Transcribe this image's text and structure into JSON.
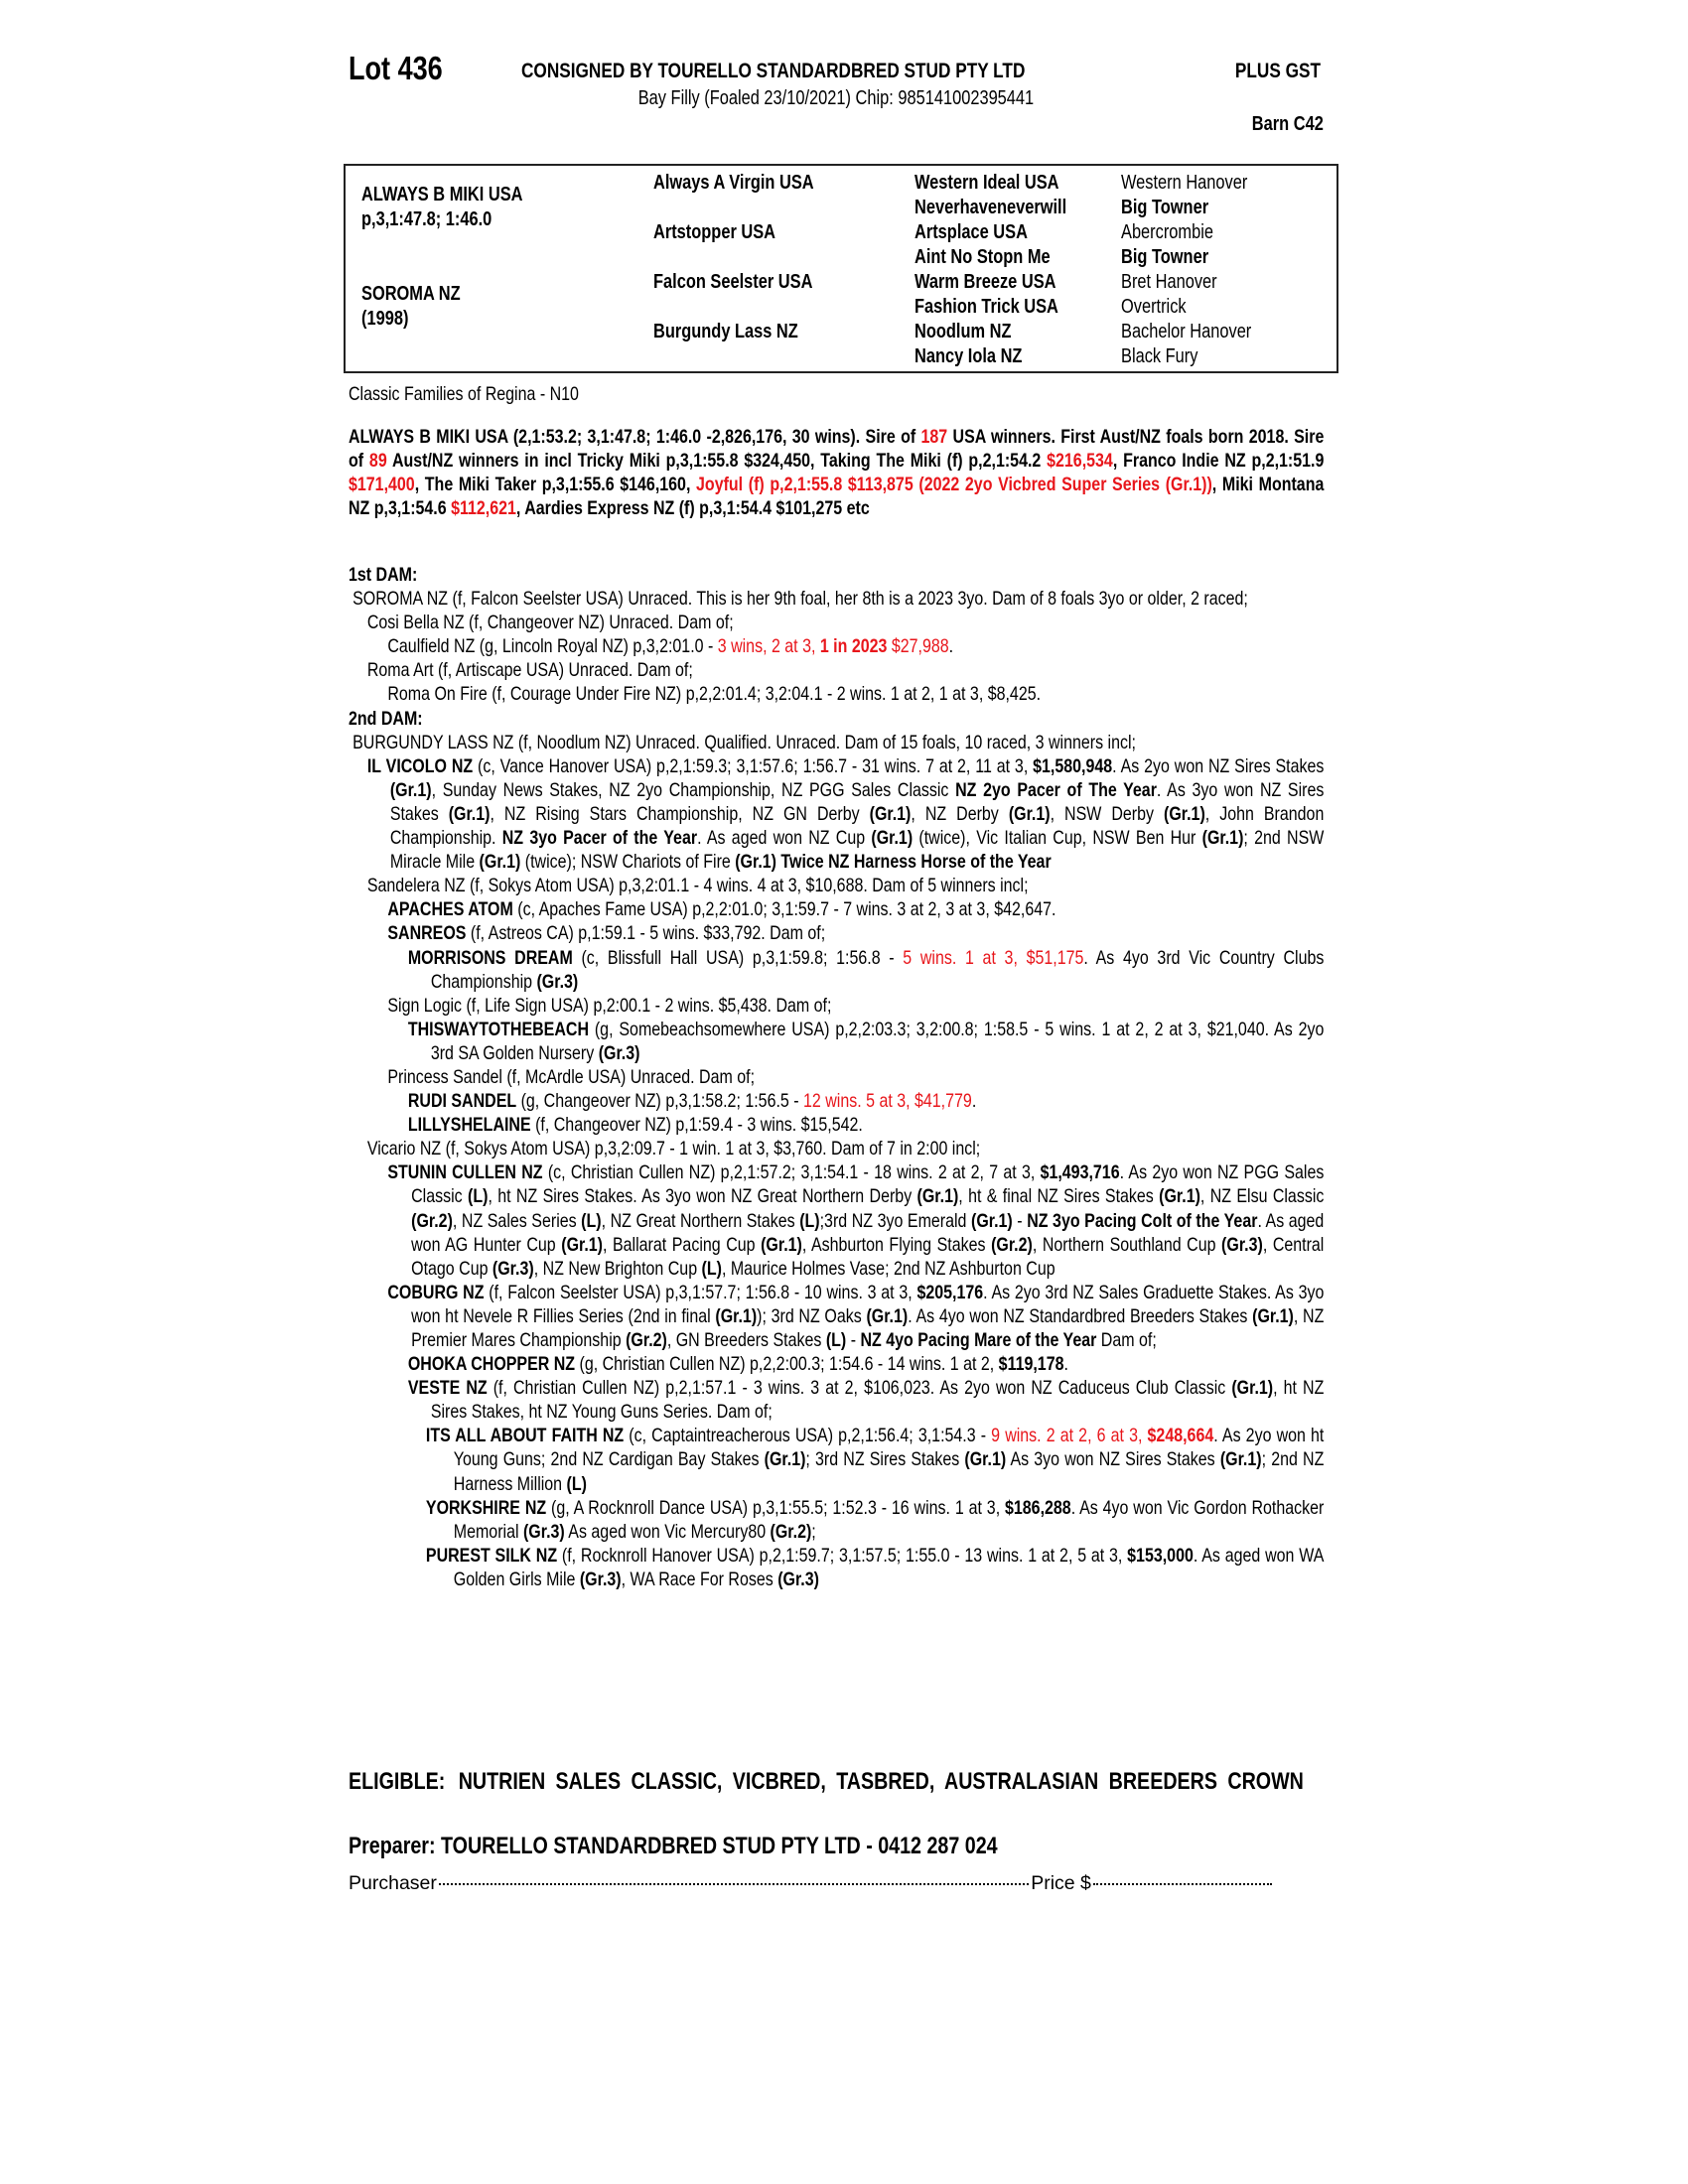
{
  "header": {
    "lot": "Lot 436",
    "consigned_by": "CONSIGNED BY TOURELLO STANDARDBRED STUD PTY LTD",
    "tax_note": "PLUS GST",
    "description": "Bay Filly (Foaled 23/10/2021) Chip: 985141002395441",
    "barn": "Barn C42"
  },
  "pedigree": {
    "sire": {
      "name": "ALWAYS B MIKI USA",
      "record": "p,3,1:47.8; 1:46.0"
    },
    "dam": {
      "name": "SOROMA NZ",
      "year": "(1998)"
    },
    "col2": [
      "Always A Virgin USA",
      "Artstopper USA",
      "Falcon Seelster USA",
      "Burgundy Lass NZ"
    ],
    "col3": [
      "Western Ideal USA",
      "Neverhaveneverwill",
      "Artsplace USA",
      "Aint No Stopn Me",
      "Warm Breeze USA",
      "Fashion Trick USA",
      "Noodlum NZ",
      "Nancy Iola NZ"
    ],
    "col4": [
      {
        "t": "Western Hanover",
        "bold": false
      },
      {
        "t": "Big Towner",
        "bold": true
      },
      {
        "t": "Abercrombie",
        "bold": false
      },
      {
        "t": "Big Towner",
        "bold": true
      },
      {
        "t": "Bret Hanover",
        "bold": false
      },
      {
        "t": "Overtrick",
        "bold": false
      },
      {
        "t": "Bachelor Hanover",
        "bold": false
      },
      {
        "t": "Black Fury",
        "bold": false
      }
    ]
  },
  "family": "Classic Families of Regina - N10",
  "sire_summary": {
    "segs": [
      {
        "t": "ALWAYS B MIKI USA (2,1:53.2; 3,1:47.8; 1:46.0 -2,826,176, 30 wins). Sire of ",
        "s": "b"
      },
      {
        "t": "187",
        "s": "br"
      },
      {
        "t": " USA winners. First Aust/NZ foals born 2018. Sire of ",
        "s": "b"
      },
      {
        "t": "89",
        "s": "br"
      },
      {
        "t": " Aust/NZ winners in incl Tricky Miki p,3,1:55.8 $324,450, Taking The Miki (f) p,2,1:54.2 ",
        "s": "b"
      },
      {
        "t": "$216,534",
        "s": "br"
      },
      {
        "t": ", Franco Indie NZ p,2,1:51.9 ",
        "s": "b"
      },
      {
        "t": "$171,400",
        "s": "br"
      },
      {
        "t": ", The Miki Taker p,3,1:55.6 $146,160, ",
        "s": "b"
      },
      {
        "t": "Joyful (f) p,2,1:55.8 $113,875 (2022 2yo Vicbred Super Series (Gr.1))",
        "s": "br"
      },
      {
        "t": ", Miki Montana NZ p,3,1:54.6 ",
        "s": "b"
      },
      {
        "t": "$112,621",
        "s": "br"
      },
      {
        "t": ", Aardies Express NZ (f) p,3,1:54.4 $101,275 etc",
        "s": "b"
      }
    ]
  },
  "notes": [
    {
      "lvl": "h",
      "segs": [
        {
          "t": "1st DAM:",
          "s": "b"
        }
      ]
    },
    {
      "lvl": "d",
      "segs": [
        {
          "t": "SOROMA NZ (f, Falcon Seelster USA) Unraced. This is her 9th foal, her 8th is a 2023 3yo. Dam of 8 foals 3yo or older, 2 raced;",
          "s": ""
        }
      ]
    },
    {
      "lvl": "1",
      "segs": [
        {
          "t": "Cosi Bella NZ (f, Changeover NZ) Unraced. Dam of;",
          "s": ""
        }
      ]
    },
    {
      "lvl": "2",
      "segs": [
        {
          "t": "Caulfield NZ (g, Lincoln Royal NZ) p,3,2:01.0 - ",
          "s": ""
        },
        {
          "t": "3 wins, 2 at 3, ",
          "s": "r"
        },
        {
          "t": "1 in 2023",
          "s": "br"
        },
        {
          "t": " $27,988",
          "s": "r"
        },
        {
          "t": ".",
          "s": ""
        }
      ]
    },
    {
      "lvl": "1",
      "segs": [
        {
          "t": "Roma Art (f, Artiscape USA) Unraced. Dam of;",
          "s": ""
        }
      ]
    },
    {
      "lvl": "2",
      "segs": [
        {
          "t": "Roma On Fire (f, Courage Under Fire NZ) p,2,2:01.4; 3,2:04.1 - 2 wins. 1 at 2, 1 at 3, $8,425.",
          "s": ""
        }
      ]
    },
    {
      "lvl": "h",
      "segs": [
        {
          "t": "2nd DAM:",
          "s": "b"
        }
      ]
    },
    {
      "lvl": "d",
      "segs": [
        {
          "t": "BURGUNDY LASS NZ (f, Noodlum NZ) Unraced. Qualified. Unraced. Dam of 15 foals, 10 raced, 3 winners incl;",
          "s": ""
        }
      ]
    },
    {
      "lvl": "1w",
      "segs": [
        {
          "t": "IL VICOLO NZ",
          "s": "b"
        },
        {
          "t": " (c, Vance Hanover USA) p,2,1:59.3; 3,1:57.6; 1:56.7 - 31 wins. 7 at 2, 11 at 3, ",
          "s": ""
        },
        {
          "t": "$1,580,948",
          "s": "b"
        },
        {
          "t": ". As 2yo won NZ Sires Stakes ",
          "s": ""
        },
        {
          "t": "(Gr.1)",
          "s": "b"
        },
        {
          "t": ", Sunday News Stakes, NZ 2yo Championship, NZ PGG Sales Classic ",
          "s": ""
        },
        {
          "t": "NZ 2yo Pacer of The Year",
          "s": "b"
        },
        {
          "t": ". As 3yo won NZ Sires Stakes ",
          "s": ""
        },
        {
          "t": "(Gr.1)",
          "s": "b"
        },
        {
          "t": ", NZ Rising Stars Championship, NZ GN Derby ",
          "s": ""
        },
        {
          "t": "(Gr.1)",
          "s": "b"
        },
        {
          "t": ", NZ Derby ",
          "s": ""
        },
        {
          "t": "(Gr.1)",
          "s": "b"
        },
        {
          "t": ", NSW Derby ",
          "s": ""
        },
        {
          "t": "(Gr.1)",
          "s": "b"
        },
        {
          "t": ", John Brandon Championship. ",
          "s": ""
        },
        {
          "t": "NZ 3yo Pacer of the Year",
          "s": "b"
        },
        {
          "t": ". As aged won NZ Cup ",
          "s": ""
        },
        {
          "t": "(Gr.1)",
          "s": "b"
        },
        {
          "t": " (twice), Vic Italian Cup, NSW Ben Hur ",
          "s": ""
        },
        {
          "t": "(Gr.1)",
          "s": "b"
        },
        {
          "t": "; 2nd NSW Miracle Mile ",
          "s": ""
        },
        {
          "t": "(Gr.1)",
          "s": "b"
        },
        {
          "t": " (twice); NSW Chariots of Fire ",
          "s": ""
        },
        {
          "t": "(Gr.1) Twice NZ Harness Horse of the Year",
          "s": "b"
        }
      ]
    },
    {
      "lvl": "1",
      "segs": [
        {
          "t": "Sandelera NZ (f, Sokys Atom USA) p,3,2:01.1 - 4 wins. 4 at 3, $10,688. Dam of 5 winners incl;",
          "s": ""
        }
      ]
    },
    {
      "lvl": "2",
      "segs": [
        {
          "t": "APACHES ATOM",
          "s": "b"
        },
        {
          "t": " (c, Apaches Fame USA) p,2,2:01.0; 3,1:59.7 - 7 wins. 3 at 2, 3 at 3, $42,647.",
          "s": ""
        }
      ]
    },
    {
      "lvl": "2",
      "segs": [
        {
          "t": "SANREOS",
          "s": "b"
        },
        {
          "t": " (f, Astreos CA) p,1:59.1 - 5 wins. $33,792. Dam of;",
          "s": ""
        }
      ]
    },
    {
      "lvl": "3",
      "segs": [
        {
          "t": "MORRISONS DREAM",
          "s": "b"
        },
        {
          "t": " (c, Blissfull Hall USA) p,3,1:59.8; 1:56.8 - ",
          "s": ""
        },
        {
          "t": "5 wins. 1 at 3, $51,175",
          "s": "r"
        },
        {
          "t": ". As 4yo 3rd Vic Country Clubs Championship ",
          "s": ""
        },
        {
          "t": "(Gr.3)",
          "s": "b"
        }
      ]
    },
    {
      "lvl": "2",
      "segs": [
        {
          "t": "Sign Logic (f, Life Sign USA) p,2:00.1 - 2 wins. $5,438. Dam of;",
          "s": ""
        }
      ]
    },
    {
      "lvl": "3",
      "segs": [
        {
          "t": "THISWAYTOTHEBEACH",
          "s": "b"
        },
        {
          "t": " (g, Somebeachsomewhere USA) p,2,2:03.3; 3,2:00.8; 1:58.5 - 5 wins. 1 at 2, 2 at 3, $21,040. As 2yo 3rd SA Golden Nursery ",
          "s": ""
        },
        {
          "t": "(Gr.3)",
          "s": "b"
        }
      ]
    },
    {
      "lvl": "2",
      "segs": [
        {
          "t": "Princess Sandel (f, McArdle USA) Unraced. Dam of;",
          "s": ""
        }
      ]
    },
    {
      "lvl": "3",
      "segs": [
        {
          "t": "RUDI SANDEL",
          "s": "b"
        },
        {
          "t": " (g, Changeover NZ) p,3,1:58.2; 1:56.5 - ",
          "s": ""
        },
        {
          "t": "12 wins. 5 at 3, $41,779",
          "s": "r"
        },
        {
          "t": ".",
          "s": ""
        }
      ]
    },
    {
      "lvl": "3",
      "segs": [
        {
          "t": "LILLYSHELAINE",
          "s": "b"
        },
        {
          "t": " (f, Changeover NZ) p,1:59.4 - 3 wins. $15,542.",
          "s": ""
        }
      ]
    },
    {
      "lvl": "1",
      "segs": [
        {
          "t": "Vicario NZ (f, Sokys Atom USA) p,3,2:09.7 - 1 win. 1 at 3, $3,760. Dam of 7 in 2:00 incl;",
          "s": ""
        }
      ]
    },
    {
      "lvl": "2",
      "segs": [
        {
          "t": "STUNIN CULLEN NZ",
          "s": "b"
        },
        {
          "t": " (c, Christian Cullen NZ) p,2,1:57.2; 3,1:54.1 - 18 wins. 2 at 2, 7 at 3, ",
          "s": ""
        },
        {
          "t": "$1,493,716",
          "s": "b"
        },
        {
          "t": ". As 2yo won NZ PGG Sales Classic ",
          "s": ""
        },
        {
          "t": "(L)",
          "s": "b"
        },
        {
          "t": ", ht NZ Sires Stakes. As 3yo won NZ Great Northern Derby ",
          "s": ""
        },
        {
          "t": "(Gr.1)",
          "s": "b"
        },
        {
          "t": ", ht & final NZ Sires Stakes ",
          "s": ""
        },
        {
          "t": "(Gr.1)",
          "s": "b"
        },
        {
          "t": ", NZ Elsu Classic ",
          "s": ""
        },
        {
          "t": "(Gr.2)",
          "s": "b"
        },
        {
          "t": ", NZ Sales Series ",
          "s": ""
        },
        {
          "t": "(L)",
          "s": "b"
        },
        {
          "t": ", NZ Great Northern Stakes ",
          "s": ""
        },
        {
          "t": "(L)",
          "s": "b"
        },
        {
          "t": ";3rd NZ 3yo Emerald ",
          "s": ""
        },
        {
          "t": "(Gr.1)",
          "s": "b"
        },
        {
          "t": " - ",
          "s": ""
        },
        {
          "t": "NZ 3yo Pacing Colt of the Year",
          "s": "b"
        },
        {
          "t": ". As aged won AG Hunter Cup ",
          "s": ""
        },
        {
          "t": "(Gr.1)",
          "s": "b"
        },
        {
          "t": ", Ballarat Pacing Cup ",
          "s": ""
        },
        {
          "t": "(Gr.1)",
          "s": "b"
        },
        {
          "t": ", Ashburton Flying Stakes ",
          "s": ""
        },
        {
          "t": "(Gr.2)",
          "s": "b"
        },
        {
          "t": ", Northern Southland Cup ",
          "s": ""
        },
        {
          "t": "(Gr.3)",
          "s": "b"
        },
        {
          "t": ", Central Otago Cup ",
          "s": ""
        },
        {
          "t": "(Gr.3)",
          "s": "b"
        },
        {
          "t": ", NZ New Brighton Cup ",
          "s": ""
        },
        {
          "t": "(L)",
          "s": "b"
        },
        {
          "t": ", Maurice Holmes Vase; 2nd NZ Ashburton Cup",
          "s": ""
        }
      ]
    },
    {
      "lvl": "2",
      "segs": [
        {
          "t": "COBURG NZ",
          "s": "b"
        },
        {
          "t": " (f, Falcon Seelster USA) p,3,1:57.7; 1:56.8 - 10 wins. 3 at 3, ",
          "s": ""
        },
        {
          "t": "$205,176",
          "s": "b"
        },
        {
          "t": ". As 2yo 3rd NZ Sales Graduette Stakes. As 3yo won ht Nevele R Fillies Series (2nd in final ",
          "s": ""
        },
        {
          "t": "(Gr.1)",
          "s": "b"
        },
        {
          "t": "); 3rd NZ Oaks ",
          "s": ""
        },
        {
          "t": "(Gr.1)",
          "s": "b"
        },
        {
          "t": ". As 4yo won NZ Standardbred Breeders Stakes ",
          "s": ""
        },
        {
          "t": "(Gr.1)",
          "s": "b"
        },
        {
          "t": ", NZ Premier Mares Championship ",
          "s": ""
        },
        {
          "t": "(Gr.2)",
          "s": "b"
        },
        {
          "t": ", GN Breeders Stakes ",
          "s": ""
        },
        {
          "t": "(L)",
          "s": "b"
        },
        {
          "t": " - ",
          "s": ""
        },
        {
          "t": "NZ 4yo Pacing Mare of the Year",
          "s": "b"
        },
        {
          "t": " Dam of;",
          "s": ""
        }
      ]
    },
    {
      "lvl": "3",
      "segs": [
        {
          "t": "OHOKA CHOPPER NZ",
          "s": "b"
        },
        {
          "t": " (g, Christian Cullen NZ) p,2,2:00.3; 1:54.6 - 14 wins. 1 at 2, ",
          "s": ""
        },
        {
          "t": "$119,178",
          "s": "b"
        },
        {
          "t": ".",
          "s": ""
        }
      ]
    },
    {
      "lvl": "3",
      "segs": [
        {
          "t": "VESTE NZ",
          "s": "b"
        },
        {
          "t": " (f, Christian Cullen NZ) p,2,1:57.1 - 3 wins. 3 at 2, $106,023. As 2yo won NZ Caduceus Club Classic ",
          "s": ""
        },
        {
          "t": "(Gr.1)",
          "s": "b"
        },
        {
          "t": ", ht NZ Sires Stakes, ht NZ Young Guns Series. Dam of;",
          "s": ""
        }
      ]
    },
    {
      "lvl": "4",
      "segs": [
        {
          "t": "ITS ALL ABOUT FAITH NZ",
          "s": "b"
        },
        {
          "t": " (c, Captaintreacherous USA) p,2,1:56.4; 3,1:54.3 - ",
          "s": ""
        },
        {
          "t": "9 wins. 2 at 2, 6 at 3, ",
          "s": "r"
        },
        {
          "t": "$248,664",
          "s": "br"
        },
        {
          "t": ". As 2yo won ht Young Guns; 2nd NZ Cardigan Bay Stakes ",
          "s": ""
        },
        {
          "t": "(Gr.1)",
          "s": "b"
        },
        {
          "t": "; 3rd NZ Sires Stakes ",
          "s": ""
        },
        {
          "t": "(Gr.1)",
          "s": "b"
        },
        {
          "t": " As 3yo won NZ Sires Stakes ",
          "s": ""
        },
        {
          "t": "(Gr.1)",
          "s": "b"
        },
        {
          "t": "; 2nd NZ Harness Million ",
          "s": ""
        },
        {
          "t": "(L)",
          "s": "b"
        }
      ]
    },
    {
      "lvl": "4",
      "segs": [
        {
          "t": "YORKSHIRE NZ",
          "s": "b"
        },
        {
          "t": " (g, A Rocknroll Dance USA) p,3,1:55.5; 1:52.3 - 16 wins. 1 at 3, ",
          "s": ""
        },
        {
          "t": "$186,288",
          "s": "b"
        },
        {
          "t": ". As 4yo won Vic Gordon Rothacker Memorial ",
          "s": ""
        },
        {
          "t": "(Gr.3)",
          "s": "b"
        },
        {
          "t": " As aged won Vic Mercury80 ",
          "s": ""
        },
        {
          "t": "(Gr.2)",
          "s": "b"
        },
        {
          "t": ";",
          "s": ""
        }
      ]
    },
    {
      "lvl": "4",
      "segs": [
        {
          "t": "PUREST SILK NZ",
          "s": "b"
        },
        {
          "t": " (f, Rocknroll Hanover USA) p,2,1:59.7; 3,1:57.5; 1:55.0 - 13 wins. 1 at 2, 5 at 3, ",
          "s": ""
        },
        {
          "t": "$153,000",
          "s": "b"
        },
        {
          "t": ". As aged won WA Golden Girls Mile ",
          "s": ""
        },
        {
          "t": "(Gr.3)",
          "s": "b"
        },
        {
          "t": ", WA Race For Roses ",
          "s": ""
        },
        {
          "t": "(Gr.3)",
          "s": "b"
        }
      ]
    }
  ],
  "eligible": {
    "label": "ELIGIBLE:",
    "text": "NUTRIEN SALES CLASSIC, VICBRED, TASBRED, AUSTRALASIAN BREEDERS CROWN"
  },
  "preparer": "Preparer: TOURELLO STANDARDBRED STUD PTY LTD - 0412 287 024",
  "purchase": {
    "purchaser_label": "Purchaser",
    "price_label": "Price $"
  },
  "colors": {
    "highlight": "#e8161b",
    "text": "#000000"
  }
}
